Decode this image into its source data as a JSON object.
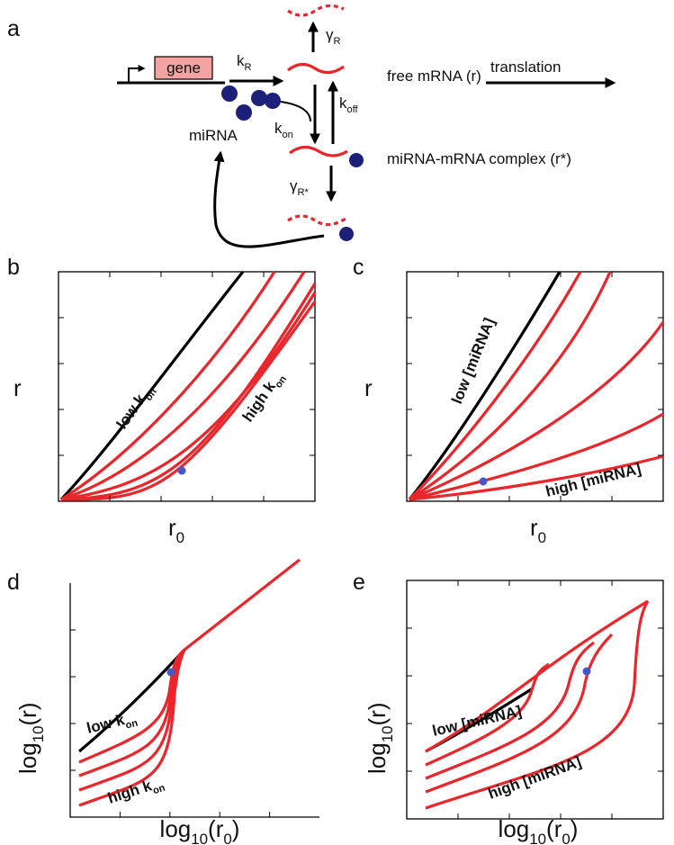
{
  "panel_labels": [
    "a",
    "b",
    "c",
    "d",
    "e"
  ],
  "diagram": {
    "gene": "gene",
    "k_R": [
      "k",
      "R"
    ],
    "gamma_R": [
      "γ",
      "R"
    ],
    "k_off": [
      "k",
      "off"
    ],
    "k_on": [
      "k",
      "on"
    ],
    "miRNA": "miRNA",
    "free_mrna": "free mRNA (r)",
    "translation": "translation",
    "complex": "miRNA-mRNA complex (r*)",
    "gamma_Rstar": [
      "γ",
      "R*"
    ]
  },
  "plots": [
    {
      "ylabel": [
        "r"
      ],
      "xlabel": [
        "r",
        "0"
      ],
      "low": [
        "low k",
        "on"
      ],
      "high": [
        "high k",
        "on"
      ]
    },
    {
      "ylabel": [
        "r"
      ],
      "xlabel": [
        "r",
        "0"
      ],
      "low": [
        "low [miRNA]"
      ],
      "high": [
        "high [miRNA]"
      ]
    },
    {
      "ylabel": [
        "log",
        "10",
        "(r)"
      ],
      "xlabel": [
        "log",
        "10",
        "(r",
        "0",
        ")"
      ],
      "low": [
        "low k",
        "on"
      ],
      "high": [
        "high k",
        "on"
      ]
    },
    {
      "ylabel": [
        "log",
        "10",
        "(r)"
      ],
      "xlabel": [
        "log",
        "10",
        "(r",
        "0",
        ")"
      ],
      "low": [
        "low [miRNA]"
      ],
      "high": [
        "high [miRNA]"
      ]
    }
  ]
}
